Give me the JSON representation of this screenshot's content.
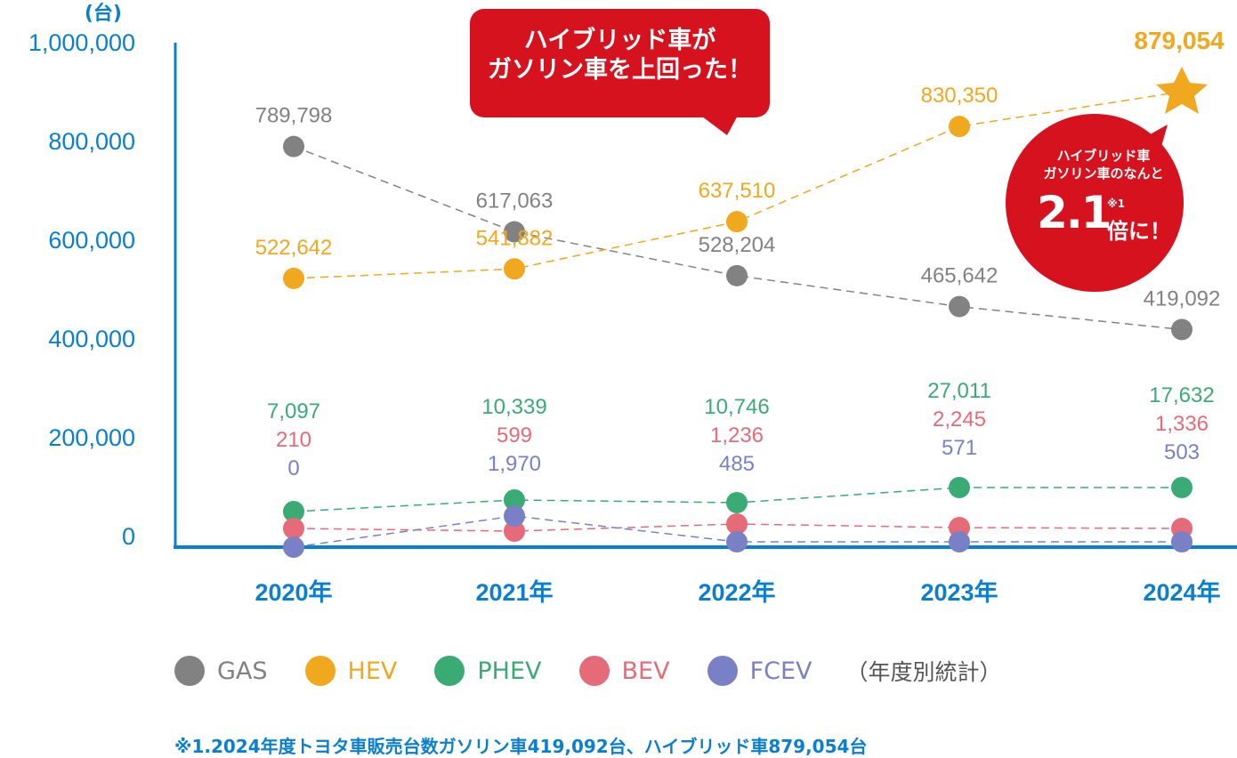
{
  "chart_data": {
    "type": "line",
    "unit_label": "(台)",
    "ylim": [
      0,
      1000000
    ],
    "y_ticks": [
      "1,000,000",
      "800,000",
      "600,000",
      "400,000",
      "200,000",
      "0"
    ],
    "y_tick_values": [
      1000000,
      800000,
      600000,
      400000,
      200000,
      0
    ],
    "categories": [
      "2020年",
      "2021年",
      "2022年",
      "2023年",
      "2024年"
    ],
    "series": [
      {
        "name": "GAS",
        "color": "#828282",
        "values": [
          789798,
          617063,
          528204,
          465642,
          419092
        ],
        "labels": [
          "789,798",
          "617,063",
          "528,204",
          "465,642",
          "419,092"
        ]
      },
      {
        "name": "HEV",
        "color": "#f0a81f",
        "values": [
          522642,
          541882,
          637510,
          830350,
          879054
        ],
        "labels": [
          "522,642",
          "541,882",
          "637,510",
          "830,350",
          "879,054"
        ]
      },
      {
        "name": "PHEV",
        "color": "#3aab74",
        "values": [
          7097,
          10339,
          10746,
          27011,
          17632
        ],
        "labels": [
          "7,097",
          "10,339",
          "10,746",
          "27,011",
          "17,632"
        ]
      },
      {
        "name": "BEV",
        "color": "#e56b78",
        "values": [
          210,
          599,
          1236,
          2245,
          1336
        ],
        "labels": [
          "210",
          "599",
          "1,236",
          "2,245",
          "1,336"
        ]
      },
      {
        "name": "FCEV",
        "color": "#7a80c6",
        "values": [
          0,
          1970,
          485,
          571,
          503
        ],
        "labels": [
          "0",
          "1,970",
          "485",
          "571",
          "503"
        ]
      }
    ],
    "grid": false,
    "legend_position": "bottom"
  },
  "callouts": {
    "bubble_line1": "ハイブリッド車が",
    "bubble_line2": "ガソリン車を上回った！",
    "circle_line1": "ハイブリッド車",
    "circle_line2": "ガソリン車のなんと",
    "circle_big": "2.1",
    "circle_note": "※1",
    "circle_tail": "倍に！",
    "highlight_color": "#d7121f"
  },
  "legend_note": "（年度別統計）",
  "footnote": "※1.2024年度トヨタ車販売台数ガソリン車419,092台、ハイブリッド車879,054台",
  "colors": {
    "axis": "#0b7fcf"
  }
}
